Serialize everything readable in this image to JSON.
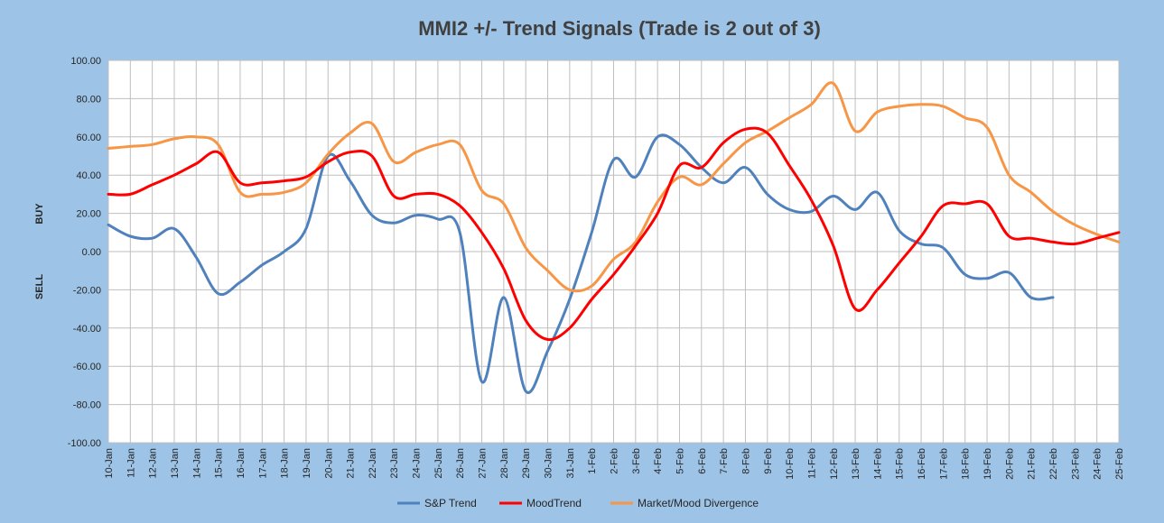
{
  "chart_data": {
    "type": "line",
    "title": "MMI2 +/- Trend Signals (Trade is 2 out of 3)",
    "ylim": [
      -100,
      100
    ],
    "y_ticks": [
      "100.00",
      "80.00",
      "60.00",
      "40.00",
      "20.00",
      "0.00",
      "-20.00",
      "-40.00",
      "-60.00",
      "-80.00",
      "-100.00"
    ],
    "y_side_labels": {
      "buy": "BUY",
      "sell": "SELL"
    },
    "categories": [
      "10-Jan",
      "11-Jan",
      "12-Jan",
      "13-Jan",
      "14-Jan",
      "15-Jan",
      "16-Jan",
      "17-Jan",
      "18-Jan",
      "19-Jan",
      "20-Jan",
      "21-Jan",
      "22-Jan",
      "23-Jan",
      "24-Jan",
      "25-Jan",
      "26-Jan",
      "27-Jan",
      "28-Jan",
      "29-Jan",
      "30-Jan",
      "31-Jan",
      "1-Feb",
      "2-Feb",
      "3-Feb",
      "4-Feb",
      "5-Feb",
      "6-Feb",
      "7-Feb",
      "8-Feb",
      "9-Feb",
      "10-Feb",
      "11-Feb",
      "12-Feb",
      "13-Feb",
      "14-Feb",
      "15-Feb",
      "16-Feb",
      "17-Feb",
      "18-Feb",
      "19-Feb",
      "20-Feb",
      "21-Feb",
      "22-Feb",
      "23-Feb",
      "24-Feb",
      "25-Feb"
    ],
    "grid": true,
    "legend_position": "bottom",
    "series": [
      {
        "name": "S&P Trend",
        "color": "#4f81bd",
        "values": [
          14,
          8,
          7,
          12,
          -3,
          -22,
          -16,
          -7,
          0,
          12,
          50,
          37,
          19,
          15,
          19,
          17,
          10,
          -68,
          -24,
          -73,
          -52,
          -25,
          10,
          48,
          39,
          60,
          56,
          44,
          36,
          44,
          30,
          22,
          21,
          29,
          22,
          31,
          11,
          4,
          2,
          -12,
          -14,
          -11,
          -24,
          -24,
          null,
          null,
          null
        ]
      },
      {
        "name": "MoodTrend",
        "color": "#ff0000",
        "values": [
          30,
          30,
          35,
          40,
          46,
          52,
          36,
          36,
          37,
          39,
          47,
          52,
          50,
          29,
          30,
          30,
          24,
          10,
          -9,
          -36,
          -46,
          -40,
          -25,
          -12,
          3,
          20,
          45,
          44,
          57,
          64,
          62,
          45,
          27,
          3,
          -30,
          -20,
          -6,
          8,
          24,
          25,
          25,
          8,
          7,
          5,
          4,
          7,
          10
        ]
      },
      {
        "name": "Market/Mood Divergence",
        "color": "#f79646",
        "values": [
          54,
          55,
          56,
          59,
          60,
          56,
          31,
          30,
          31,
          36,
          51,
          62,
          67,
          47,
          52,
          56,
          56,
          32,
          25,
          2,
          -10,
          -20,
          -18,
          -4,
          5,
          26,
          39,
          35,
          46,
          57,
          63,
          70,
          77,
          88,
          63,
          73,
          76,
          77,
          76,
          70,
          65,
          40,
          31,
          21,
          14,
          9,
          5
        ]
      }
    ]
  }
}
